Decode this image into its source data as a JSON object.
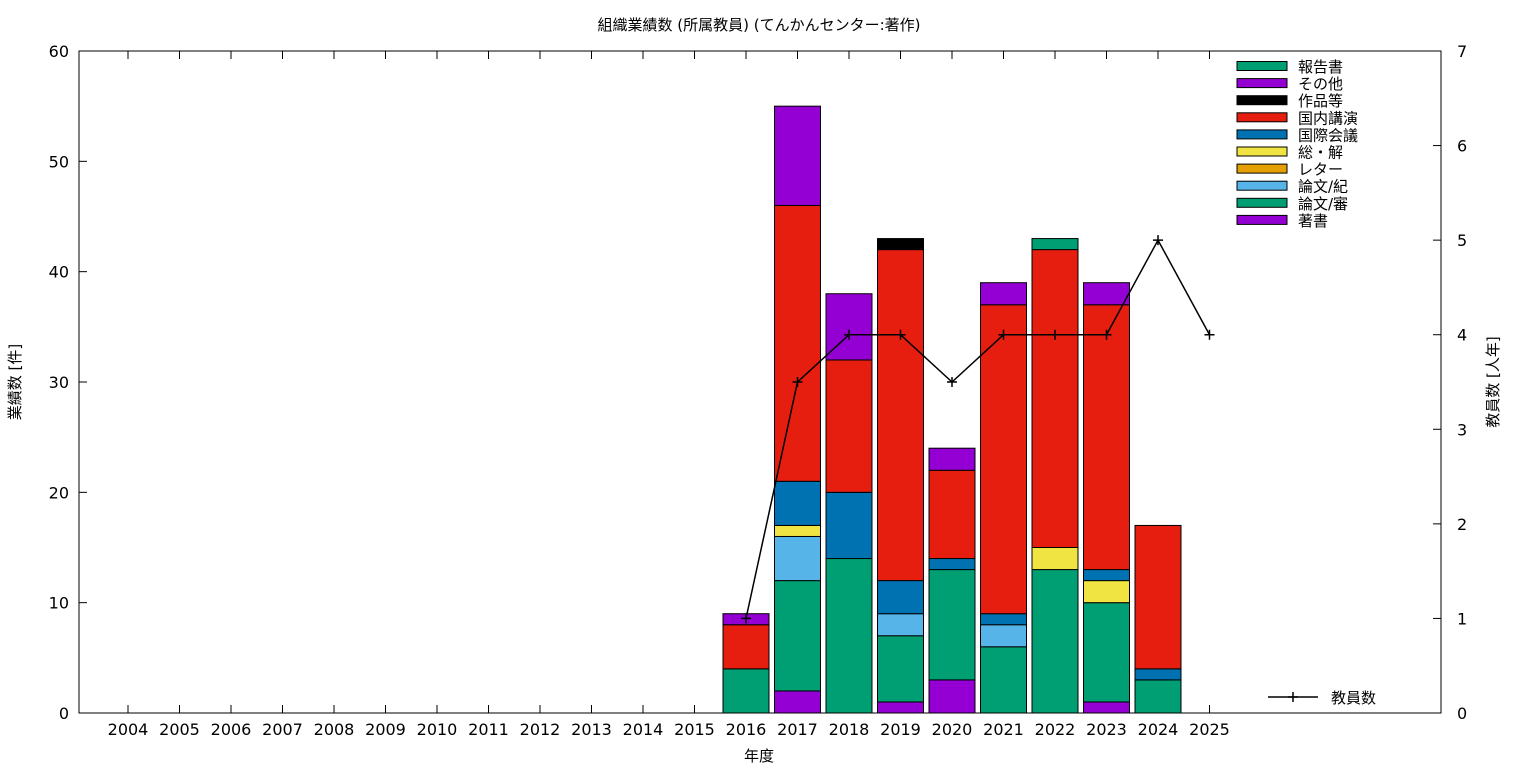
{
  "chart_data": {
    "type": "bar",
    "title": "組織業績数 (所属教員) (てんかんセンター:著作)",
    "xlabel": "年度",
    "ylabel": "業績数 [件]",
    "y2label": "教員数 [人年]",
    "categories": [
      "2004",
      "2005",
      "2006",
      "2007",
      "2008",
      "2009",
      "2010",
      "2011",
      "2012",
      "2013",
      "2014",
      "2015",
      "2016",
      "2017",
      "2018",
      "2019",
      "2020",
      "2021",
      "2022",
      "2023",
      "2024",
      "2025"
    ],
    "ylim": [
      0,
      60
    ],
    "y_ticks": [
      "0",
      "10",
      "20",
      "30",
      "40",
      "50",
      "60"
    ],
    "y2lim": [
      0,
      7
    ],
    "y2_ticks": [
      "0",
      "1",
      "2",
      "3",
      "4",
      "5",
      "6",
      "7"
    ],
    "stacked": true,
    "legend_position": "top-right",
    "series": [
      {
        "name": "著書",
        "color": "#9400d3",
        "values": [
          0,
          0,
          0,
          0,
          0,
          0,
          0,
          0,
          0,
          0,
          0,
          0,
          0,
          2,
          0,
          1,
          3,
          0,
          0,
          1,
          0,
          0
        ]
      },
      {
        "name": "論文/審",
        "color": "#009e73",
        "values": [
          0,
          0,
          0,
          0,
          0,
          0,
          0,
          0,
          0,
          0,
          0,
          0,
          4,
          10,
          14,
          6,
          10,
          6,
          13,
          9,
          3,
          0
        ]
      },
      {
        "name": "論文/紀",
        "color": "#56b4e9",
        "values": [
          0,
          0,
          0,
          0,
          0,
          0,
          0,
          0,
          0,
          0,
          0,
          0,
          0,
          4,
          0,
          2,
          0,
          2,
          0,
          0,
          0,
          0
        ]
      },
      {
        "name": "レター",
        "color": "#e69f00",
        "values": [
          0,
          0,
          0,
          0,
          0,
          0,
          0,
          0,
          0,
          0,
          0,
          0,
          0,
          0,
          0,
          0,
          0,
          0,
          0,
          0,
          0,
          0
        ]
      },
      {
        "name": "総・解",
        "color": "#f0e442",
        "values": [
          0,
          0,
          0,
          0,
          0,
          0,
          0,
          0,
          0,
          0,
          0,
          0,
          0,
          1,
          0,
          0,
          0,
          0,
          2,
          2,
          0,
          0
        ]
      },
      {
        "name": "国際会議",
        "color": "#0072b2",
        "values": [
          0,
          0,
          0,
          0,
          0,
          0,
          0,
          0,
          0,
          0,
          0,
          0,
          0,
          4,
          6,
          3,
          1,
          1,
          0,
          1,
          1,
          0
        ]
      },
      {
        "name": "国内講演",
        "color": "#e51e10",
        "values": [
          0,
          0,
          0,
          0,
          0,
          0,
          0,
          0,
          0,
          0,
          0,
          0,
          4,
          25,
          12,
          30,
          8,
          28,
          27,
          24,
          13,
          0
        ]
      },
      {
        "name": "作品等",
        "color": "#000000",
        "values": [
          0,
          0,
          0,
          0,
          0,
          0,
          0,
          0,
          0,
          0,
          0,
          0,
          0,
          0,
          0,
          1,
          0,
          0,
          0,
          0,
          0,
          0
        ]
      },
      {
        "name": "その他",
        "color": "#9400d3",
        "values": [
          0,
          0,
          0,
          0,
          0,
          0,
          0,
          0,
          0,
          0,
          0,
          0,
          1,
          9,
          6,
          0,
          2,
          2,
          0,
          2,
          0,
          0
        ]
      },
      {
        "name": "報告書",
        "color": "#009e73",
        "values": [
          0,
          0,
          0,
          0,
          0,
          0,
          0,
          0,
          0,
          0,
          0,
          0,
          0,
          0,
          0,
          0,
          0,
          0,
          1,
          0,
          0,
          0
        ]
      }
    ],
    "line_series": {
      "name": "教員数",
      "axis": "right",
      "color": "#000000",
      "x": [
        "2016",
        "2017",
        "2018",
        "2019",
        "2020",
        "2021",
        "2022",
        "2023",
        "2024",
        "2025"
      ],
      "values": [
        1,
        3.5,
        4,
        4,
        3.5,
        4,
        4,
        4,
        5,
        4
      ]
    }
  }
}
